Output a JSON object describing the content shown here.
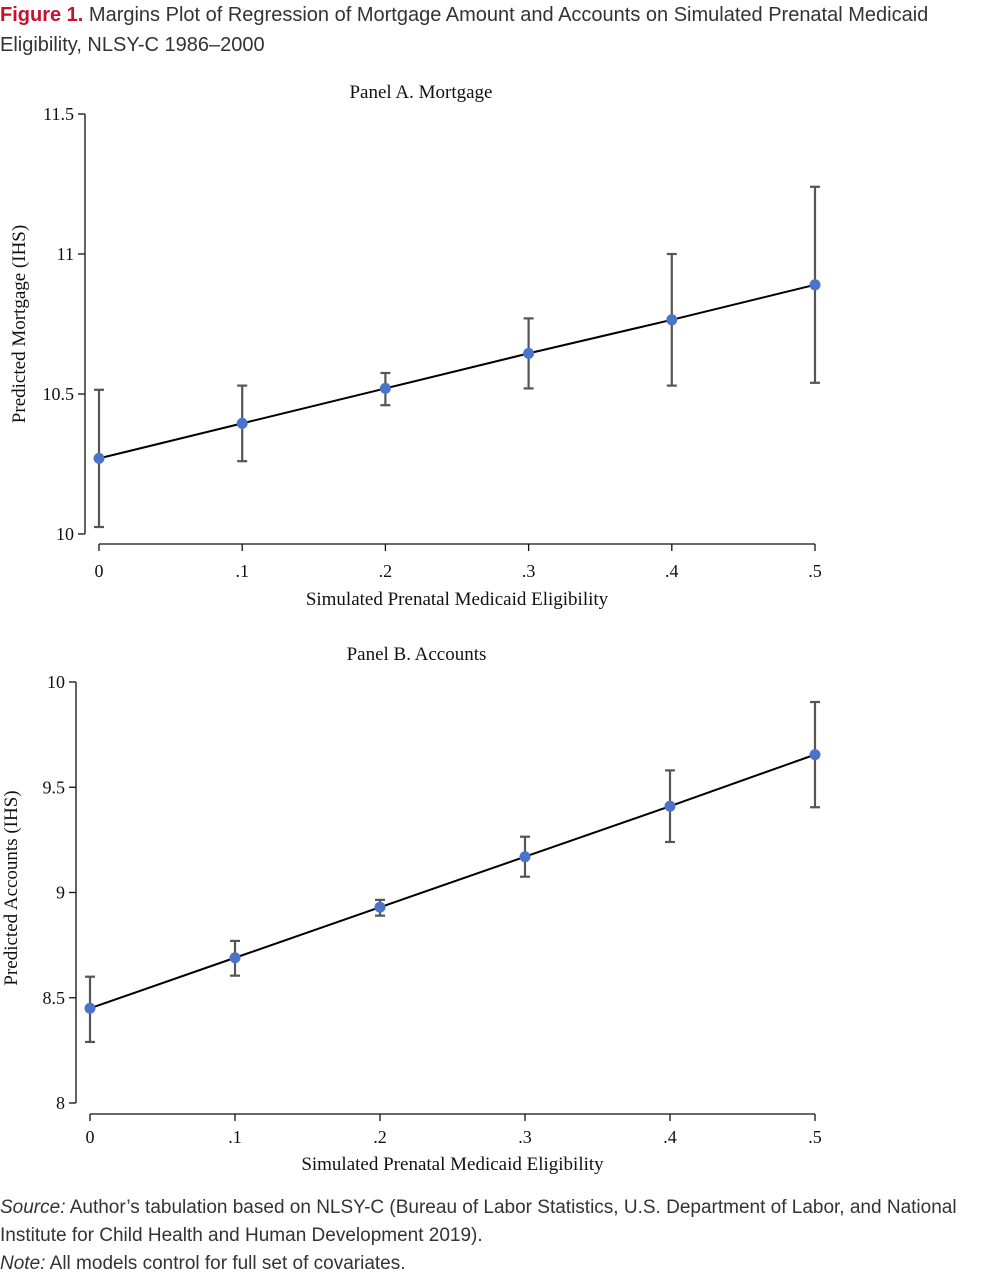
{
  "figure": {
    "label": "Figure 1.",
    "title": "Margins Plot of Regression of Mortgage Amount and Accounts on Simulated Prenatal Medicaid Eligibility, NLSY-C 1986–2000"
  },
  "chart_data": [
    {
      "type": "scatter",
      "title": "Panel A. Mortgage",
      "xlabel": "Simulated Prenatal Medicaid Eligibility",
      "ylabel": "Predicted Mortgage (IHS)",
      "x": [
        0,
        0.1,
        0.2,
        0.3,
        0.4,
        0.5
      ],
      "x_tick_labels": [
        "0",
        ".1",
        ".2",
        ".3",
        ".4",
        ".5"
      ],
      "y_ticks": [
        10,
        10.5,
        11,
        11.5
      ],
      "y_tick_labels": [
        "10",
        "10.5",
        "11",
        "11.5"
      ],
      "xlim": [
        0,
        0.5
      ],
      "ylim": [
        10,
        11.5
      ],
      "series": [
        {
          "values": [
            10.27,
            10.395,
            10.52,
            10.645,
            10.765,
            10.89
          ],
          "ci_low": [
            10.025,
            10.26,
            10.46,
            10.52,
            10.53,
            10.54
          ],
          "ci_high": [
            10.515,
            10.53,
            10.575,
            10.77,
            11.0,
            11.24
          ],
          "color": "#4a74c9"
        }
      ],
      "grid": false,
      "fit_line": true
    },
    {
      "type": "scatter",
      "title": "Panel B. Accounts",
      "xlabel": "Simulated Prenatal Medicaid Eligibility",
      "ylabel": "Predicted Accounts (IHS)",
      "x": [
        0,
        0.1,
        0.2,
        0.3,
        0.4,
        0.5
      ],
      "x_tick_labels": [
        "0",
        ".1",
        ".2",
        ".3",
        ".4",
        ".5"
      ],
      "y_ticks": [
        8,
        8.5,
        9,
        9.5,
        10
      ],
      "y_tick_labels": [
        "8",
        "8.5",
        "9",
        "9.5",
        "10"
      ],
      "xlim": [
        0,
        0.5
      ],
      "ylim": [
        8,
        10
      ],
      "series": [
        {
          "values": [
            8.45,
            8.69,
            8.93,
            9.17,
            9.41,
            9.655
          ],
          "ci_low": [
            8.29,
            8.605,
            8.89,
            9.075,
            9.24,
            9.405
          ],
          "ci_high": [
            8.6,
            8.77,
            8.965,
            9.265,
            9.58,
            9.905
          ],
          "color": "#4a74c9"
        }
      ],
      "grid": false,
      "fit_line": true
    }
  ],
  "notes": {
    "source_label": "Source:",
    "source_text": "Author’s tabulation based on NLSY-C (Bureau of Labor Statistics, U.S. Department of Labor, and National Institute for Child Health and Human Development 2019).",
    "note_label": "Note:",
    "note_text": "All models control for full set of covariates."
  }
}
